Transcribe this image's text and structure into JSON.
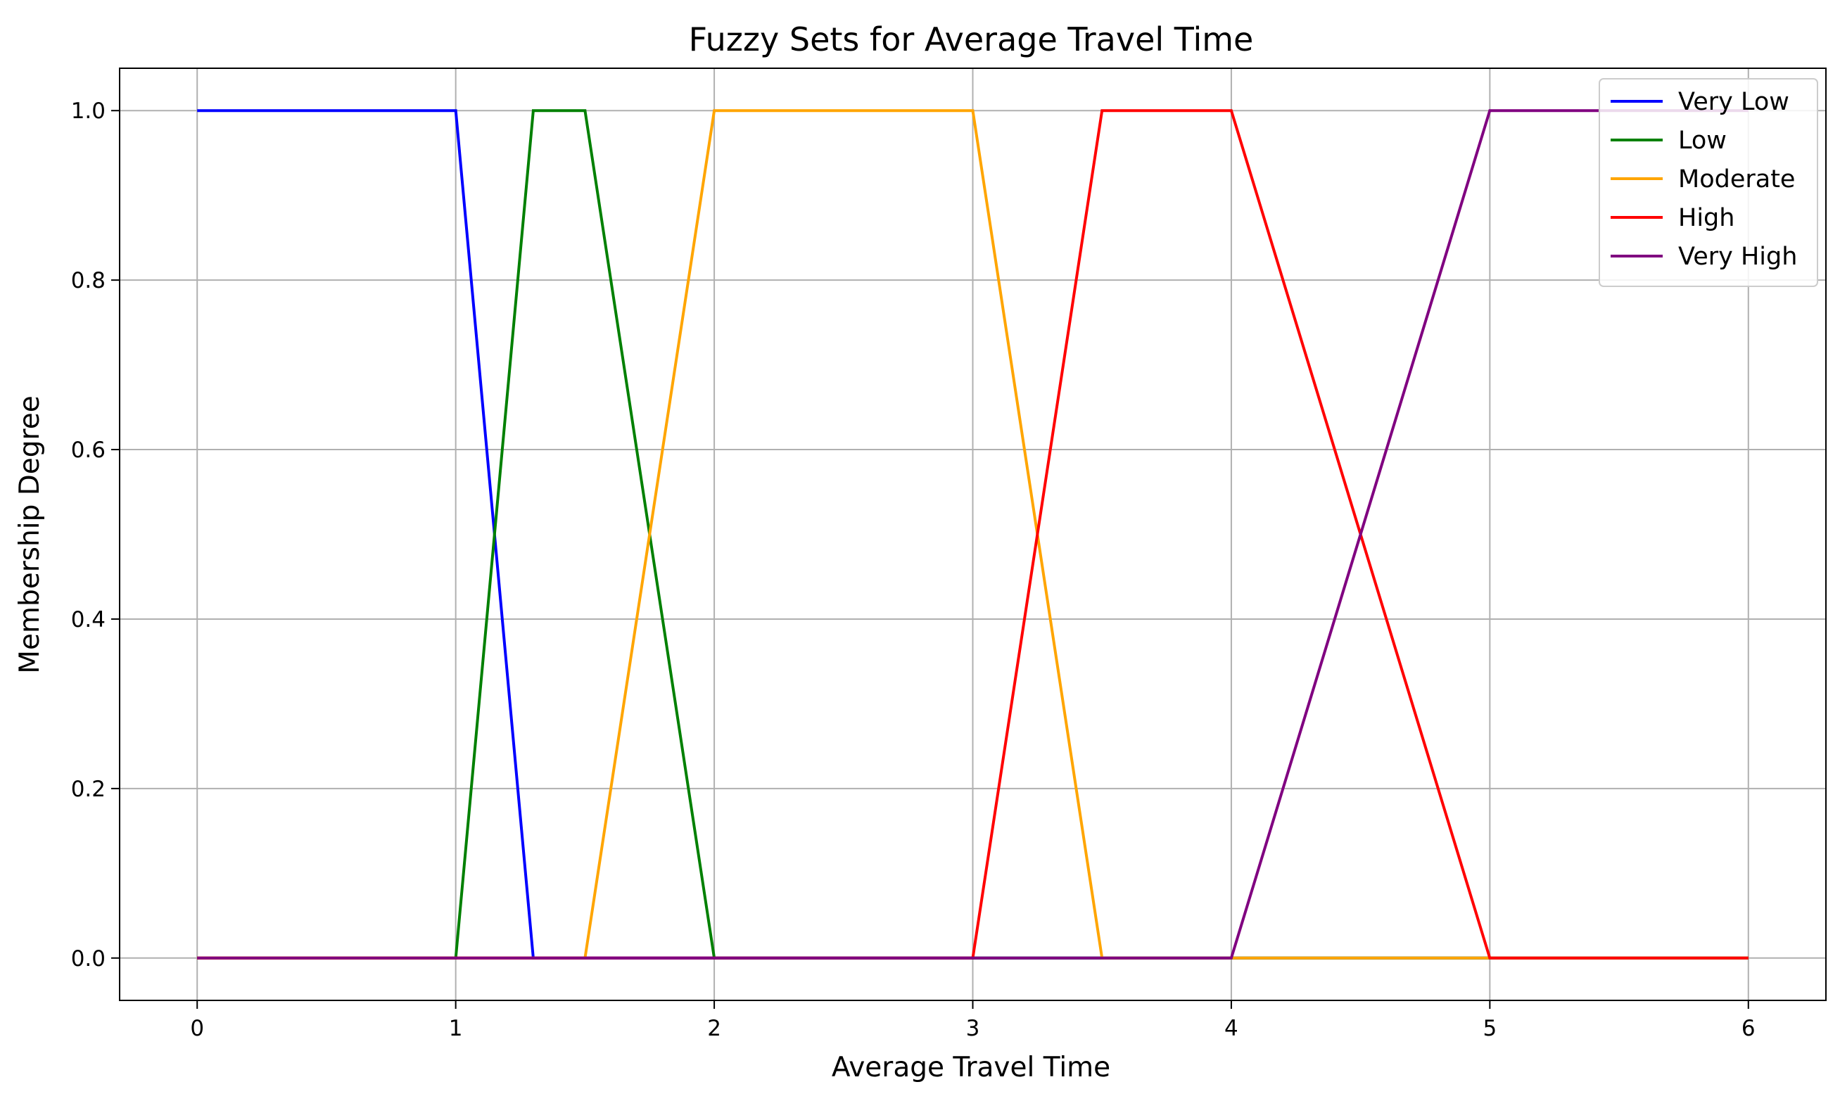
{
  "chart_data": {
    "type": "line",
    "title": "Fuzzy Sets for Average Travel Time",
    "xlabel": "Average Travel Time",
    "ylabel": "Membership Degree",
    "xlim": [
      -0.3,
      6.3
    ],
    "ylim": [
      -0.05,
      1.05
    ],
    "xticks": [
      0,
      1,
      2,
      3,
      4,
      5,
      6
    ],
    "xtick_labels": [
      "0",
      "1",
      "2",
      "3",
      "4",
      "5",
      "6"
    ],
    "yticks": [
      0.0,
      0.2,
      0.4,
      0.6,
      0.8,
      1.0
    ],
    "ytick_labels": [
      "0.0",
      "0.2",
      "0.4",
      "0.6",
      "0.8",
      "1.0"
    ],
    "grid": true,
    "legend_position": "top-right",
    "series": [
      {
        "name": "Very Low",
        "color": "#0000ff",
        "points": [
          [
            0,
            1
          ],
          [
            1,
            1
          ],
          [
            1.3,
            0
          ],
          [
            6,
            0
          ]
        ]
      },
      {
        "name": "Low",
        "color": "#008000",
        "points": [
          [
            0,
            0
          ],
          [
            1,
            0
          ],
          [
            1.3,
            1
          ],
          [
            1.5,
            1
          ],
          [
            2,
            0
          ],
          [
            6,
            0
          ]
        ]
      },
      {
        "name": "Moderate",
        "color": "#ffa500",
        "points": [
          [
            0,
            0
          ],
          [
            1.5,
            0
          ],
          [
            2,
            1
          ],
          [
            3,
            1
          ],
          [
            3.5,
            0
          ],
          [
            6,
            0
          ]
        ]
      },
      {
        "name": "High",
        "color": "#ff0000",
        "points": [
          [
            0,
            0
          ],
          [
            3,
            0
          ],
          [
            3.5,
            1
          ],
          [
            4,
            1
          ],
          [
            5,
            0
          ],
          [
            6,
            0
          ]
        ]
      },
      {
        "name": "Very High",
        "color": "#800080",
        "points": [
          [
            0,
            0
          ],
          [
            4,
            0
          ],
          [
            5,
            1
          ],
          [
            6,
            1
          ]
        ]
      }
    ]
  }
}
